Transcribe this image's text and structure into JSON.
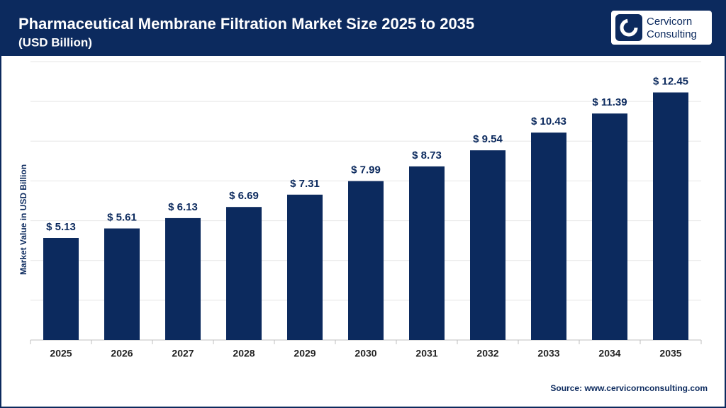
{
  "chart_data": {
    "type": "bar",
    "title": "Pharmaceutical Membrane Filtration Market Size 2025 to 2035",
    "subtitle": "(USD Billion)",
    "y_label": "Market Value in USD Billion",
    "source": "Source: www.cervicornconsulting.com",
    "categories": [
      "2025",
      "2026",
      "2027",
      "2028",
      "2029",
      "2030",
      "2031",
      "2032",
      "2033",
      "2034",
      "2035"
    ],
    "values": [
      5.13,
      5.61,
      6.13,
      6.69,
      7.31,
      7.99,
      8.73,
      9.54,
      10.43,
      11.39,
      12.45
    ],
    "value_labels": [
      "$ 5.13",
      "$ 5.61",
      "$ 6.13",
      "$ 6.69",
      "$ 7.31",
      "$ 7.99",
      "$ 8.73",
      "$ 9.54",
      "$ 10.43",
      "$ 11.39",
      "$ 12.45"
    ],
    "color": "#0c2a5e",
    "ylim": [
      0,
      14
    ],
    "yticks": [
      0,
      2,
      4,
      6,
      8,
      10,
      12,
      14
    ],
    "grid": true
  },
  "logo": {
    "line1": "Cervicorn",
    "line2": "Consulting"
  }
}
